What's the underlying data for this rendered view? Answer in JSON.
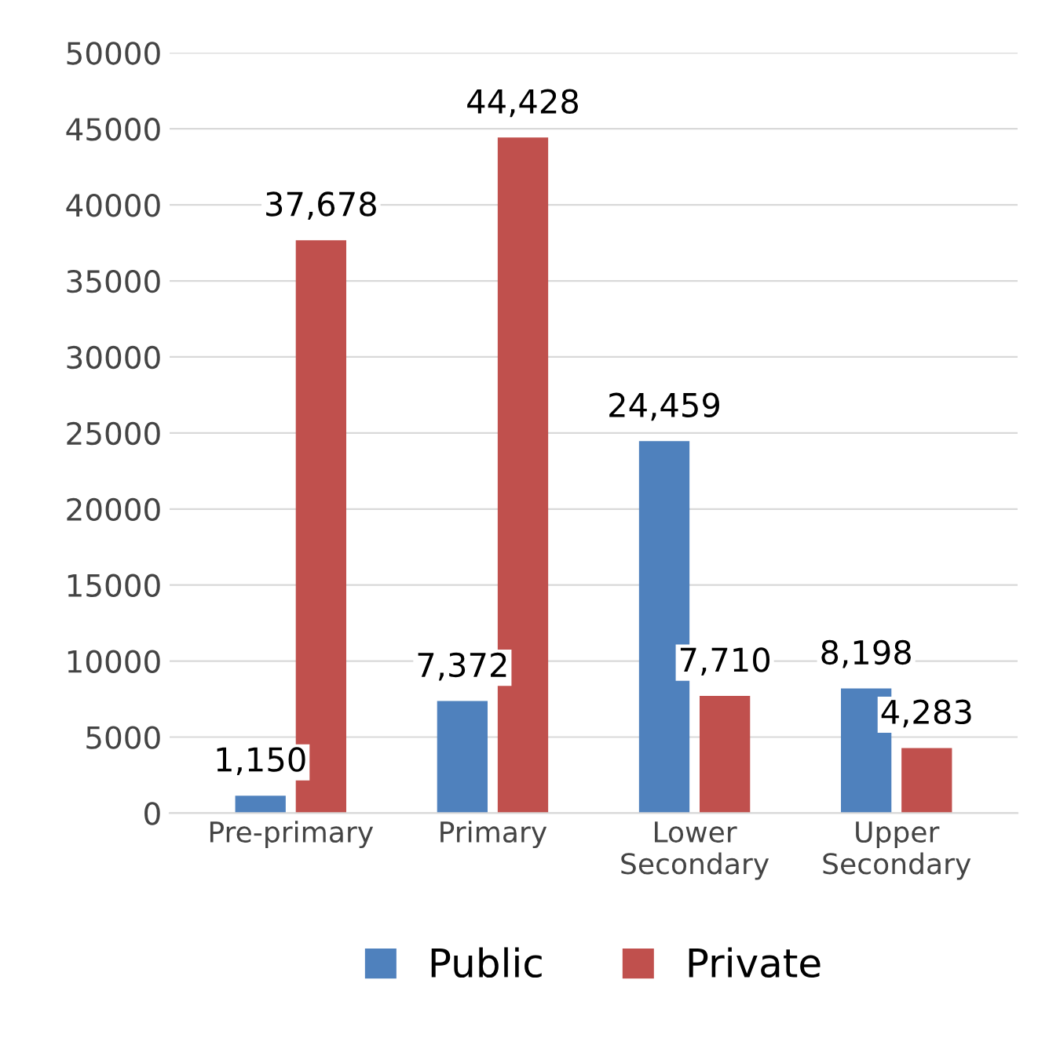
{
  "chart_data": {
    "type": "bar",
    "categories": [
      "Pre-primary",
      "Primary",
      "Lower\nSecondary",
      "Upper\nSecondary"
    ],
    "series": [
      {
        "name": "Public",
        "color": "#4f81bd",
        "values": [
          1150,
          7372,
          24459,
          8198
        ],
        "value_labels": [
          "1,150",
          "7,372",
          "24,459",
          "8,198"
        ]
      },
      {
        "name": "Private",
        "color": "#c0504d",
        "values": [
          37678,
          44428,
          7710,
          4283
        ],
        "value_labels": [
          "37,678",
          "44,428",
          "7,710",
          "4,283"
        ]
      }
    ],
    "ylim": [
      0,
      50000
    ],
    "yticks": [
      0,
      5000,
      10000,
      15000,
      20000,
      25000,
      30000,
      35000,
      40000,
      45000,
      50000
    ],
    "grid": "y",
    "legend": "bottom"
  }
}
